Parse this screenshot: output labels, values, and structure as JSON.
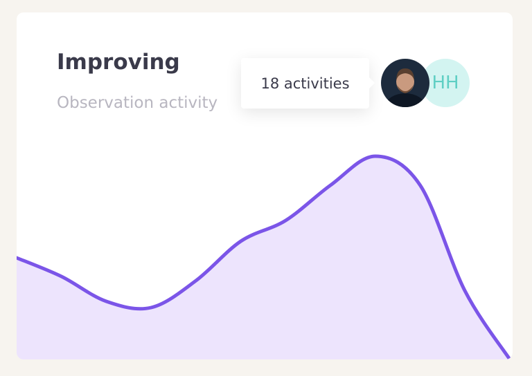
{
  "card": {
    "title": "Improving",
    "subtitle": "Observation activity"
  },
  "tooltip": "18 activities",
  "avatar_initials": "HH",
  "chart_data": {
    "type": "area",
    "values": [
      49,
      40,
      28,
      25,
      38,
      57,
      67,
      84,
      98,
      84,
      33,
      0
    ],
    "ylim": [
      0,
      100
    ],
    "color": "#7b55e8",
    "fill": "#ede4fd"
  }
}
